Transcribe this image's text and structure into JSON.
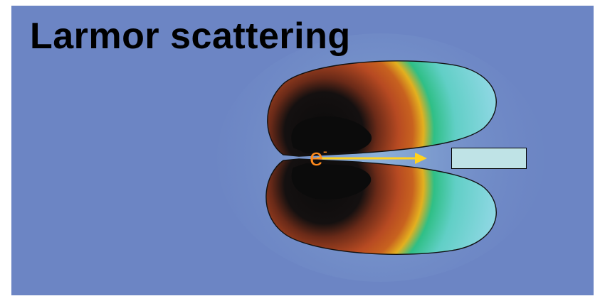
{
  "title": "Larmor scattering",
  "particle": {
    "symbol": "e",
    "charge": "-"
  },
  "colors": {
    "background": "#6c85c4",
    "lobe_outer": "#7fd3e0",
    "lobe_mid": "#2fbf86",
    "lobe_warm": "#e3b01f",
    "lobe_red": "#b74a22",
    "lobe_core": "#0b0b0b",
    "arrow": "#ffd21f",
    "particle_label": "#ff8a1c",
    "detector": "#bfe3e6"
  }
}
